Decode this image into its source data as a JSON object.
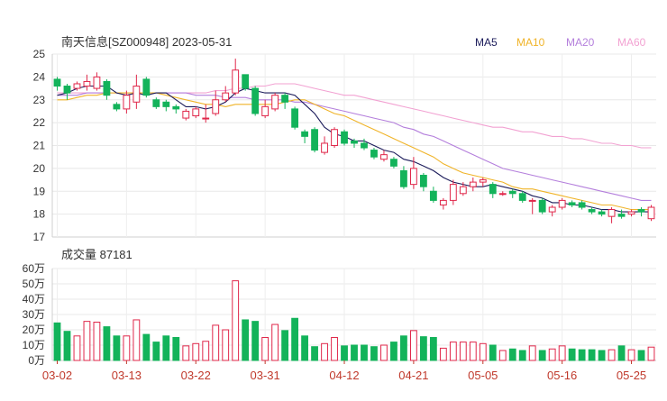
{
  "chart_data": {
    "type": "candlestick",
    "title": "南天信息[SZ000948] 2023-05-31",
    "legend": [
      {
        "label": "MA5",
        "color": "#1b1b5a"
      },
      {
        "label": "MA10",
        "color": "#f0b429"
      },
      {
        "label": "MA20",
        "color": "#b47fdc"
      },
      {
        "label": "MA60",
        "color": "#f2a2d2"
      }
    ],
    "colors": {
      "up": "#e0274a",
      "down": "#13b35a"
    },
    "price_axis": {
      "min": 17,
      "max": 25,
      "ticks": [
        "25",
        "24",
        "23",
        "22",
        "21",
        "20",
        "19",
        "18",
        "17"
      ]
    },
    "volume_title": "成交量 87181",
    "volume_axis": {
      "max": 60,
      "ticks": [
        "60万",
        "50万",
        "40万",
        "30万",
        "20万",
        "10万",
        "0万"
      ]
    },
    "x_ticks": [
      {
        "label": "03-02",
        "index": 0
      },
      {
        "label": "03-13",
        "index": 7
      },
      {
        "label": "03-22",
        "index": 14
      },
      {
        "label": "03-31",
        "index": 21
      },
      {
        "label": "04-12",
        "index": 29
      },
      {
        "label": "04-21",
        "index": 36
      },
      {
        "label": "05-05",
        "index": 43
      },
      {
        "label": "05-16",
        "index": 51
      },
      {
        "label": "05-25",
        "index": 58
      }
    ],
    "candles": [
      [
        23.9,
        23.6,
        24.0,
        23.4
      ],
      [
        23.6,
        23.3,
        23.7,
        23.0
      ],
      [
        23.5,
        23.7,
        23.8,
        23.4
      ],
      [
        23.6,
        23.8,
        24.1,
        23.4
      ],
      [
        23.5,
        24.0,
        24.2,
        23.4
      ],
      [
        23.8,
        23.2,
        23.9,
        23.0
      ],
      [
        22.8,
        22.6,
        22.9,
        22.5
      ],
      [
        22.6,
        23.2,
        23.4,
        22.4
      ],
      [
        22.9,
        23.6,
        24.1,
        22.6
      ],
      [
        23.9,
        23.2,
        24.0,
        23.1
      ],
      [
        23.0,
        22.7,
        23.1,
        22.6
      ],
      [
        22.9,
        22.7,
        23.0,
        22.5
      ],
      [
        22.7,
        22.6,
        22.8,
        22.4
      ],
      [
        22.2,
        22.5,
        22.6,
        22.1
      ],
      [
        22.3,
        22.6,
        22.7,
        22.2
      ],
      [
        22.2,
        22.2,
        22.8,
        22.0
      ],
      [
        22.4,
        23.0,
        23.4,
        22.3
      ],
      [
        23.0,
        23.3,
        23.6,
        22.9
      ],
      [
        23.3,
        24.3,
        24.8,
        23.2
      ],
      [
        24.1,
        23.5,
        24.1,
        23.4
      ],
      [
        23.5,
        22.4,
        23.6,
        22.3
      ],
      [
        22.3,
        22.7,
        23.0,
        22.2
      ],
      [
        22.6,
        23.2,
        23.3,
        22.5
      ],
      [
        23.2,
        22.9,
        23.3,
        22.6
      ],
      [
        22.6,
        21.8,
        22.7,
        21.7
      ],
      [
        21.6,
        21.4,
        21.7,
        21.1
      ],
      [
        21.7,
        20.8,
        21.8,
        20.7
      ],
      [
        20.7,
        21.1,
        21.4,
        20.6
      ],
      [
        21.0,
        21.7,
        21.8,
        20.9
      ],
      [
        21.6,
        21.1,
        21.7,
        21.0
      ],
      [
        21.2,
        21.1,
        21.3,
        20.9
      ],
      [
        21.1,
        20.9,
        21.3,
        20.8
      ],
      [
        20.8,
        20.5,
        20.9,
        20.4
      ],
      [
        20.4,
        20.6,
        20.8,
        20.3
      ],
      [
        20.4,
        20.1,
        20.5,
        20.0
      ],
      [
        19.9,
        19.2,
        20.1,
        19.1
      ],
      [
        19.3,
        20.0,
        20.5,
        19.1
      ],
      [
        19.7,
        19.2,
        19.8,
        19.0
      ],
      [
        19.0,
        18.6,
        19.2,
        18.5
      ],
      [
        18.4,
        18.6,
        18.7,
        18.2
      ],
      [
        18.6,
        19.3,
        19.5,
        18.4
      ],
      [
        18.9,
        19.2,
        19.4,
        18.8
      ],
      [
        19.2,
        19.4,
        19.6,
        19.0
      ],
      [
        19.4,
        19.5,
        19.6,
        19.2
      ],
      [
        19.3,
        18.9,
        19.4,
        18.7
      ],
      [
        18.9,
        18.9,
        19.0,
        18.8
      ],
      [
        19.0,
        18.9,
        19.1,
        18.7
      ],
      [
        18.9,
        18.6,
        19.0,
        18.5
      ],
      [
        18.6,
        18.6,
        18.7,
        18.0
      ],
      [
        18.6,
        18.1,
        18.7,
        18.0
      ],
      [
        18.1,
        18.3,
        18.4,
        17.9
      ],
      [
        18.3,
        18.6,
        18.7,
        18.2
      ],
      [
        18.5,
        18.4,
        18.6,
        18.3
      ],
      [
        18.5,
        18.3,
        18.6,
        18.2
      ],
      [
        18.2,
        18.1,
        18.3,
        18.0
      ],
      [
        18.1,
        18.0,
        18.2,
        17.9
      ],
      [
        17.9,
        18.2,
        18.3,
        17.6
      ],
      [
        18.0,
        17.9,
        18.2,
        17.8
      ],
      [
        18.0,
        18.1,
        18.2,
        17.9
      ],
      [
        18.2,
        18.1,
        18.3,
        17.9
      ],
      [
        17.8,
        18.3,
        18.4,
        17.7
      ]
    ],
    "volume_wan": [
      24.5,
      19,
      16,
      25.5,
      25,
      22,
      16,
      16,
      26.5,
      17,
      12,
      16,
      15,
      9.5,
      11,
      12.5,
      23,
      20,
      52,
      26.5,
      25.5,
      15,
      23.5,
      19.5,
      27.5,
      16,
      9,
      11,
      15,
      9.5,
      10,
      10,
      9,
      10,
      12,
      16,
      19.5,
      15.5,
      15,
      8,
      12,
      12,
      12,
      11,
      10,
      6.5,
      7.5,
      6.5,
      9.5,
      6.5,
      7.5,
      9.5,
      7.5,
      7,
      7,
      6.5,
      7,
      9.5,
      7,
      6.5,
      8.7
    ],
    "ma5": [
      23.2,
      23.3,
      23.5,
      23.6,
      23.6,
      23.6,
      23.3,
      23.2,
      23.3,
      23.2,
      23.3,
      23.3,
      23.0,
      22.7,
      22.7,
      22.6,
      22.7,
      22.9,
      23.3,
      23.5,
      23.4,
      23.3,
      23.3,
      23.3,
      23.2,
      22.8,
      22.4,
      21.8,
      21.5,
      21.4,
      21.2,
      21.2,
      21.0,
      20.8,
      20.7,
      20.4,
      20.3,
      20.1,
      19.9,
      19.6,
      19.4,
      19.3,
      19.2,
      19.2,
      19.3,
      19.2,
      19.1,
      19.0,
      18.8,
      18.7,
      18.5,
      18.5,
      18.4,
      18.4,
      18.3,
      18.2,
      18.2,
      18.1,
      18.1,
      18.1,
      18.1
    ],
    "ma10": [
      23.0,
      23.0,
      23.1,
      23.2,
      23.2,
      23.3,
      23.3,
      23.3,
      23.3,
      23.3,
      23.3,
      23.2,
      23.1,
      23.0,
      22.9,
      22.8,
      22.8,
      22.7,
      22.8,
      22.8,
      22.8,
      22.8,
      22.8,
      22.9,
      23.0,
      23.0,
      22.8,
      22.6,
      22.4,
      22.3,
      22.1,
      21.9,
      21.7,
      21.5,
      21.3,
      21.1,
      20.9,
      20.7,
      20.5,
      20.2,
      20.0,
      19.8,
      19.7,
      19.6,
      19.5,
      19.4,
      19.2,
      19.1,
      19.1,
      19.0,
      18.9,
      18.8,
      18.7,
      18.6,
      18.5,
      18.4,
      18.4,
      18.3,
      18.2,
      18.2,
      18.2
    ],
    "ma20": [
      23.2,
      23.2,
      23.2,
      23.3,
      23.3,
      23.3,
      23.3,
      23.3,
      23.3,
      23.3,
      23.3,
      23.3,
      23.3,
      23.3,
      23.2,
      23.2,
      23.2,
      23.1,
      23.1,
      23.1,
      23.0,
      23.0,
      23.0,
      23.0,
      22.9,
      22.9,
      22.8,
      22.7,
      22.6,
      22.5,
      22.4,
      22.3,
      22.2,
      22.1,
      22.0,
      21.8,
      21.7,
      21.5,
      21.4,
      21.2,
      21.0,
      20.8,
      20.6,
      20.4,
      20.2,
      20.0,
      19.9,
      19.8,
      19.7,
      19.6,
      19.5,
      19.4,
      19.3,
      19.2,
      19.1,
      19.0,
      18.9,
      18.8,
      18.7,
      18.6,
      18.6
    ],
    "ma60": [
      23.3,
      23.3,
      23.3,
      23.3,
      23.3,
      23.3,
      23.3,
      23.3,
      23.3,
      23.3,
      23.3,
      23.3,
      23.3,
      23.3,
      23.3,
      23.3,
      23.4,
      23.4,
      23.5,
      23.5,
      23.6,
      23.6,
      23.7,
      23.7,
      23.7,
      23.6,
      23.5,
      23.4,
      23.3,
      23.2,
      23.2,
      23.1,
      23.0,
      22.9,
      22.8,
      22.7,
      22.6,
      22.5,
      22.4,
      22.3,
      22.2,
      22.1,
      22.0,
      21.9,
      21.8,
      21.8,
      21.7,
      21.6,
      21.6,
      21.5,
      21.4,
      21.4,
      21.3,
      21.3,
      21.2,
      21.1,
      21.1,
      21.0,
      21.0,
      20.9,
      20.9
    ]
  }
}
